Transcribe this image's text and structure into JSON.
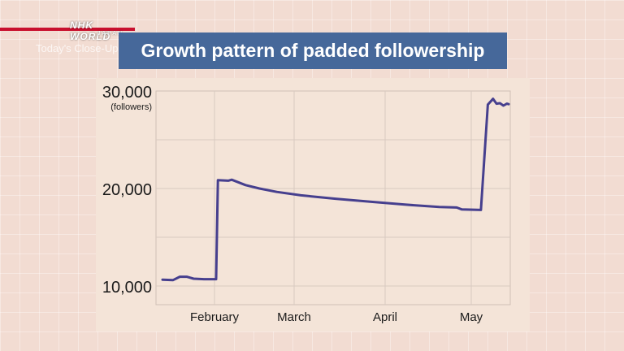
{
  "broadcast": {
    "logo_main": "NHK WORLD",
    "logo_sub": "JAPAN",
    "program": "Today's Close-Up"
  },
  "chart_data": {
    "type": "line",
    "title": "Growth pattern of padded followership",
    "xlabel": "",
    "ylabel": "(followers)",
    "yticks": [
      "10,000",
      "20,000",
      "30,000"
    ],
    "ylim": [
      10000,
      30000
    ],
    "xticks": [
      "February",
      "March",
      "April",
      "May"
    ],
    "grid": true,
    "line_color": "#463f8e",
    "series": [
      {
        "name": "",
        "points": [
          [
            0.0,
            10650
          ],
          [
            0.03,
            10600
          ],
          [
            0.05,
            10950
          ],
          [
            0.07,
            10950
          ],
          [
            0.09,
            10750
          ],
          [
            0.12,
            10700
          ],
          [
            0.155,
            10700
          ],
          [
            0.16,
            20850
          ],
          [
            0.19,
            20800
          ],
          [
            0.2,
            20900
          ],
          [
            0.24,
            20350
          ],
          [
            0.28,
            20000
          ],
          [
            0.33,
            19650
          ],
          [
            0.4,
            19300
          ],
          [
            0.5,
            18950
          ],
          [
            0.6,
            18650
          ],
          [
            0.7,
            18350
          ],
          [
            0.8,
            18100
          ],
          [
            0.85,
            18050
          ],
          [
            0.865,
            17850
          ],
          [
            0.92,
            17800
          ],
          [
            0.94,
            28600
          ],
          [
            0.955,
            29200
          ],
          [
            0.965,
            28700
          ],
          [
            0.975,
            28750
          ],
          [
            0.985,
            28500
          ],
          [
            0.995,
            28700
          ],
          [
            1.0,
            28650
          ]
        ]
      }
    ]
  }
}
